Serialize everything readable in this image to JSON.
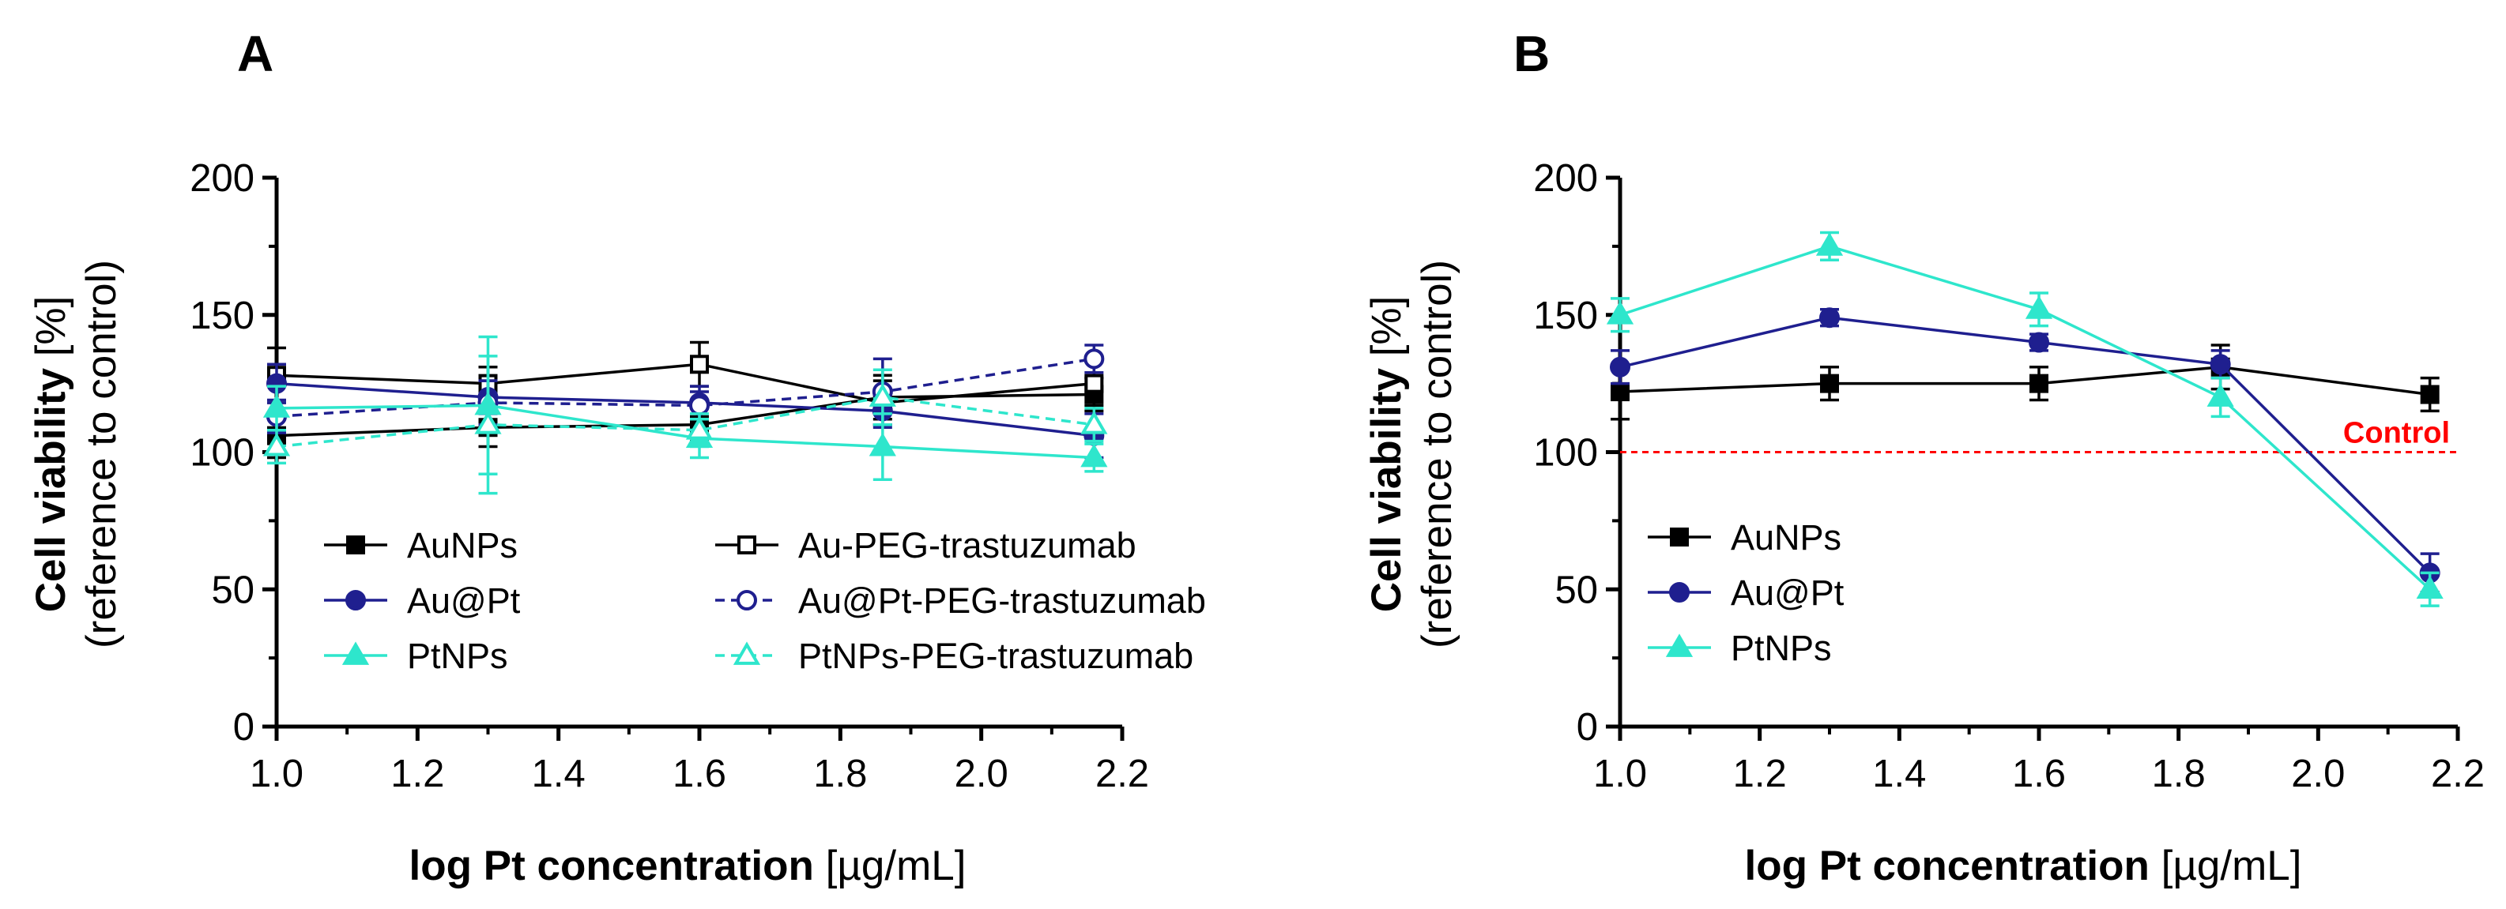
{
  "chart_data": [
    {
      "panel": "A",
      "type": "line",
      "xlabel_bold": "log Pt concentration",
      "xlabel_unit": " [µg/mL]",
      "ylabel_bold": "Cell viability",
      "ylabel_unit": " [%]",
      "ylabel_line2": "(reference to control)",
      "xlim": [
        1.0,
        2.2
      ],
      "ylim": [
        0,
        200
      ],
      "xticks": [
        "1.0",
        "1.2",
        "1.4",
        "1.6",
        "1.8",
        "2.0",
        "2.2"
      ],
      "yticks": [
        "0",
        "50",
        "100",
        "150",
        "200"
      ],
      "x": [
        1.0,
        1.3,
        1.6,
        1.86,
        2.16
      ],
      "series": [
        {
          "name": "AuNPs",
          "color": "#000000",
          "marker": "square",
          "filled": true,
          "dashed": false,
          "values": [
            106,
            109,
            110,
            120,
            121
          ],
          "errors": [
            8,
            7,
            6,
            8,
            6
          ]
        },
        {
          "name": "Au-PEG-trastuzumab",
          "color": "#000000",
          "marker": "square",
          "filled": false,
          "dashed": false,
          "values": [
            128,
            125,
            132,
            118,
            125
          ],
          "errors": [
            10,
            6,
            8,
            8,
            8
          ]
        },
        {
          "name": "Au@Pt",
          "color": "#1f1f8f",
          "marker": "circle",
          "filled": true,
          "dashed": false,
          "values": [
            125,
            120,
            118,
            115,
            106
          ],
          "errors": [
            7,
            6,
            6,
            6,
            8
          ]
        },
        {
          "name": "Au@Pt-PEG-trastuzumab",
          "color": "#1f1f8f",
          "marker": "circle",
          "filled": false,
          "dashed": true,
          "values": [
            113,
            118,
            117,
            122,
            134
          ],
          "errors": [
            6,
            8,
            5,
            12,
            5
          ]
        },
        {
          "name": "PtNPs",
          "color": "#2ee6cc",
          "marker": "triangle",
          "filled": true,
          "dashed": false,
          "values": [
            116,
            117,
            105,
            102,
            98
          ],
          "errors": [
            8,
            25,
            7,
            12,
            5
          ]
        },
        {
          "name": "PtNPs-PEG-trastuzumab",
          "color": "#2ee6cc",
          "marker": "triangle",
          "filled": false,
          "dashed": true,
          "values": [
            102,
            110,
            108,
            120,
            110
          ],
          "errors": [
            6,
            25,
            6,
            10,
            6
          ]
        }
      ],
      "legend": {
        "placement": "bottom-center",
        "columns": 2
      }
    },
    {
      "panel": "B",
      "type": "line",
      "xlabel_bold": "log Pt concentration",
      "xlabel_unit": " [µg/mL]",
      "ylabel_bold": "Cell viability",
      "ylabel_unit": " [%]",
      "ylabel_line2": "(reference to control)",
      "xlim": [
        1.0,
        2.2
      ],
      "ylim": [
        0,
        200
      ],
      "xticks": [
        "1.0",
        "1.2",
        "1.4",
        "1.6",
        "1.8",
        "2.0",
        "2.2"
      ],
      "yticks": [
        "0",
        "50",
        "100",
        "150",
        "200"
      ],
      "x": [
        1.0,
        1.3,
        1.6,
        1.86,
        2.16
      ],
      "series": [
        {
          "name": "AuNPs",
          "color": "#000000",
          "marker": "square",
          "filled": true,
          "dashed": false,
          "values": [
            122,
            125,
            125,
            131,
            121
          ],
          "errors": [
            10,
            6,
            6,
            8,
            6
          ]
        },
        {
          "name": "Au@Pt",
          "color": "#1f1f8f",
          "marker": "circle",
          "filled": true,
          "dashed": false,
          "values": [
            131,
            149,
            140,
            132,
            56
          ],
          "errors": [
            6,
            3,
            3,
            5,
            7
          ]
        },
        {
          "name": "PtNPs",
          "color": "#2ee6cc",
          "marker": "triangle",
          "filled": true,
          "dashed": false,
          "values": [
            150,
            175,
            152,
            120,
            50
          ],
          "errors": [
            6,
            5,
            6,
            7,
            6
          ]
        }
      ],
      "reference_line": {
        "y": 100,
        "label": "Control",
        "color": "#ff0000",
        "dashed": true
      },
      "legend": {
        "placement": "bottom-left",
        "columns": 1
      }
    }
  ]
}
